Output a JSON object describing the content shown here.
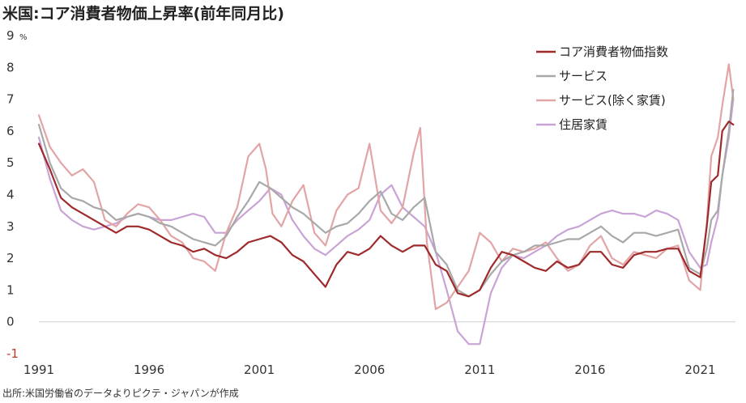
{
  "title": "米国:コア消費者物価上昇率(前年同月比)",
  "source": "出所:米国労働省のデータよりピクテ・ジャパンが作成",
  "chart_data": {
    "type": "line",
    "title": "米国:コア消費者物価上昇率(前年同月比)",
    "ylabel_unit": "%",
    "ylim": [
      -1,
      9
    ],
    "xlim": [
      1991,
      2022.6
    ],
    "y_ticks": [
      "-1",
      "0",
      "1",
      "2",
      "3",
      "4",
      "5",
      "6",
      "7",
      "8",
      "9"
    ],
    "x_ticks": [
      "1991",
      "1996",
      "2001",
      "2006",
      "2011",
      "2016",
      "2021"
    ],
    "x_tick_values": [
      1991,
      1996,
      2001,
      2006,
      2011,
      2016,
      2021
    ],
    "zero_line": true,
    "grid": false,
    "legend_position": "top-right",
    "series": [
      {
        "name": "コア消費者物価指数",
        "color": "#9e2a2b",
        "x": [
          1991,
          1991.5,
          1992,
          1992.5,
          1993,
          1993.5,
          1994,
          1994.5,
          1995,
          1995.5,
          1996,
          1996.5,
          1997,
          1997.5,
          1998,
          1998.5,
          1999,
          1999.5,
          2000,
          2000.5,
          2001,
          2001.5,
          2002,
          2002.5,
          2003,
          2003.5,
          2004,
          2004.5,
          2005,
          2005.5,
          2006,
          2006.5,
          2007,
          2007.5,
          2008,
          2008.5,
          2009,
          2009.5,
          2010,
          2010.5,
          2011,
          2011.5,
          2012,
          2012.5,
          2013,
          2013.5,
          2014,
          2014.5,
          2015,
          2015.5,
          2016,
          2016.5,
          2017,
          2017.5,
          2018,
          2018.5,
          2019,
          2019.5,
          2020,
          2020.5,
          2021,
          2021.3,
          2021.5,
          2021.8,
          2022,
          2022.3,
          2022.5
        ],
        "values": [
          5.6,
          4.8,
          3.9,
          3.6,
          3.4,
          3.2,
          3.0,
          2.8,
          3.0,
          3.0,
          2.9,
          2.7,
          2.5,
          2.4,
          2.2,
          2.3,
          2.1,
          2.0,
          2.2,
          2.5,
          2.6,
          2.7,
          2.5,
          2.1,
          1.9,
          1.5,
          1.1,
          1.8,
          2.2,
          2.1,
          2.3,
          2.7,
          2.4,
          2.2,
          2.4,
          2.4,
          1.8,
          1.6,
          0.9,
          0.8,
          1.0,
          1.7,
          2.2,
          2.1,
          1.9,
          1.7,
          1.6,
          1.9,
          1.7,
          1.8,
          2.2,
          2.2,
          1.8,
          1.7,
          2.1,
          2.2,
          2.2,
          2.3,
          2.3,
          1.6,
          1.4,
          3.0,
          4.4,
          4.6,
          6.0,
          6.3,
          6.2
        ]
      },
      {
        "name": "サービス",
        "color": "#a8a8a8",
        "x": [
          1991,
          1991.5,
          1992,
          1992.5,
          1993,
          1993.5,
          1994,
          1994.5,
          1995,
          1995.5,
          1996,
          1996.5,
          1997,
          1997.5,
          1998,
          1998.5,
          1999,
          1999.5,
          2000,
          2000.5,
          2001,
          2001.5,
          2002,
          2002.5,
          2003,
          2003.5,
          2004,
          2004.5,
          2005,
          2005.5,
          2006,
          2006.5,
          2007,
          2007.5,
          2008,
          2008.5,
          2009,
          2009.5,
          2010,
          2010.5,
          2011,
          2011.5,
          2012,
          2012.5,
          2013,
          2013.5,
          2014,
          2014.5,
          2015,
          2015.5,
          2016,
          2016.5,
          2017,
          2017.5,
          2018,
          2018.5,
          2019,
          2019.5,
          2020,
          2020.5,
          2021,
          2021.3,
          2021.5,
          2021.8,
          2022,
          2022.3,
          2022.5
        ],
        "values": [
          6.2,
          5.0,
          4.2,
          3.9,
          3.8,
          3.6,
          3.5,
          3.2,
          3.3,
          3.4,
          3.3,
          3.1,
          3.0,
          2.8,
          2.6,
          2.5,
          2.4,
          2.7,
          3.3,
          3.8,
          4.4,
          4.2,
          3.9,
          3.6,
          3.4,
          3.1,
          2.8,
          3.0,
          3.1,
          3.4,
          3.8,
          4.1,
          3.4,
          3.2,
          3.6,
          3.9,
          2.2,
          1.8,
          1.0,
          0.8,
          1.0,
          1.5,
          1.9,
          2.1,
          2.2,
          2.4,
          2.4,
          2.5,
          2.6,
          2.6,
          2.8,
          3.0,
          2.7,
          2.5,
          2.8,
          2.8,
          2.7,
          2.8,
          2.9,
          1.7,
          1.5,
          2.3,
          3.2,
          3.5,
          4.6,
          6.0,
          7.3
        ]
      },
      {
        "name": "サービス(除く家賃)",
        "color": "#e2a4a4",
        "x": [
          1991,
          1991.5,
          1992,
          1992.5,
          1993,
          1993.5,
          1994,
          1994.5,
          1995,
          1995.5,
          1996,
          1996.5,
          1997,
          1997.5,
          1998,
          1998.5,
          1999,
          1999.5,
          2000,
          2000.5,
          2001,
          2001.3,
          2001.6,
          2002,
          2002.5,
          2003,
          2003.5,
          2004,
          2004.5,
          2005,
          2005.5,
          2006,
          2006.5,
          2007,
          2007.5,
          2008,
          2008.3,
          2008.6,
          2009,
          2009.5,
          2010,
          2010.5,
          2011,
          2011.5,
          2012,
          2012.5,
          2013,
          2013.5,
          2014,
          2014.5,
          2015,
          2015.5,
          2016,
          2016.5,
          2017,
          2017.5,
          2018,
          2018.5,
          2019,
          2019.5,
          2020,
          2020.5,
          2021,
          2021.3,
          2021.5,
          2021.8,
          2022,
          2022.3,
          2022.5
        ],
        "values": [
          6.5,
          5.5,
          5.0,
          4.6,
          4.8,
          4.4,
          3.2,
          3.0,
          3.4,
          3.7,
          3.6,
          3.2,
          2.7,
          2.5,
          2.0,
          1.9,
          1.6,
          2.8,
          3.6,
          5.2,
          5.6,
          4.8,
          3.4,
          3.0,
          3.8,
          4.3,
          2.8,
          2.4,
          3.5,
          4.0,
          4.2,
          5.6,
          3.5,
          3.1,
          3.6,
          5.3,
          6.1,
          2.5,
          0.4,
          0.6,
          1.1,
          1.6,
          2.8,
          2.5,
          1.9,
          2.3,
          2.2,
          2.3,
          2.5,
          2.0,
          1.6,
          1.8,
          2.4,
          2.7,
          2.0,
          1.8,
          2.2,
          2.1,
          2.0,
          2.3,
          2.4,
          1.3,
          1.0,
          3.1,
          5.2,
          5.8,
          6.8,
          8.1,
          7.0
        ]
      },
      {
        "name": "住居家賃",
        "color": "#c9a3d6",
        "x": [
          1991,
          1991.5,
          1992,
          1992.5,
          1993,
          1993.5,
          1994,
          1994.5,
          1995,
          1995.5,
          1996,
          1996.5,
          1997,
          1997.5,
          1998,
          1998.5,
          1999,
          1999.5,
          2000,
          2000.5,
          2001,
          2001.5,
          2002,
          2002.5,
          2003,
          2003.5,
          2004,
          2004.5,
          2005,
          2005.5,
          2006,
          2006.5,
          2007,
          2007.5,
          2008,
          2008.5,
          2009,
          2009.5,
          2010,
          2010.5,
          2011,
          2011.5,
          2012,
          2012.5,
          2013,
          2013.5,
          2014,
          2014.5,
          2015,
          2015.5,
          2016,
          2016.5,
          2017,
          2017.5,
          2018,
          2018.5,
          2019,
          2019.5,
          2020,
          2020.5,
          2021,
          2021.3,
          2021.5,
          2021.8,
          2022,
          2022.3,
          2022.5
        ],
        "values": [
          5.8,
          4.5,
          3.5,
          3.2,
          3.0,
          2.9,
          3.0,
          3.1,
          3.3,
          3.4,
          3.3,
          3.2,
          3.2,
          3.3,
          3.4,
          3.3,
          2.8,
          2.8,
          3.2,
          3.5,
          3.8,
          4.2,
          4.0,
          3.2,
          2.7,
          2.3,
          2.1,
          2.4,
          2.7,
          2.9,
          3.2,
          4.0,
          4.3,
          3.6,
          3.3,
          3.0,
          2.2,
          1.0,
          -0.3,
          -0.7,
          -0.7,
          0.9,
          1.7,
          2.1,
          2.0,
          2.2,
          2.4,
          2.7,
          2.9,
          3.0,
          3.2,
          3.4,
          3.5,
          3.4,
          3.4,
          3.3,
          3.5,
          3.4,
          3.2,
          2.2,
          1.7,
          1.8,
          2.5,
          3.3,
          4.6,
          5.8,
          7.0
        ]
      }
    ]
  }
}
